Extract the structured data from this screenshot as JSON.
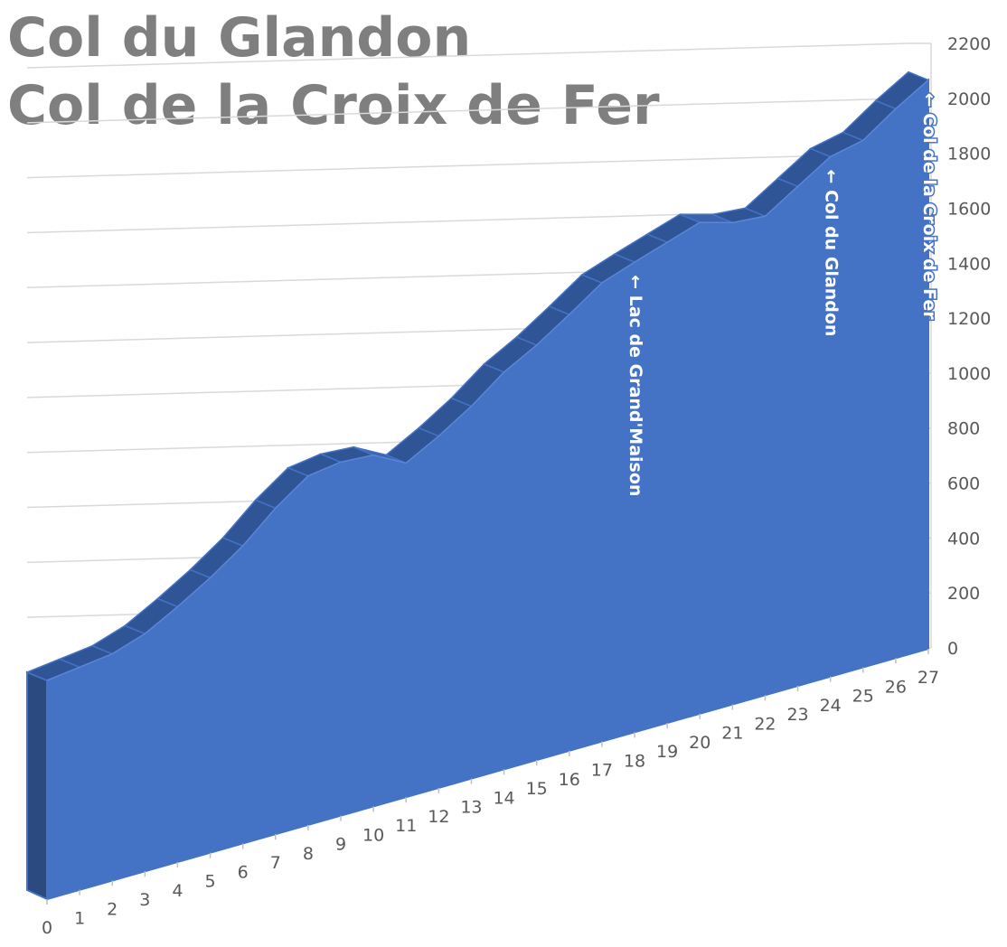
{
  "chart_data": {
    "type": "area3d",
    "title": [
      "Col du Glandon",
      "Col de la Croix de Fer"
    ],
    "categories": [
      "0",
      "1",
      "2",
      "3",
      "4",
      "5",
      "6",
      "7",
      "8",
      "9",
      "10",
      "11",
      "12",
      "13",
      "14",
      "15",
      "16",
      "17",
      "18",
      "19",
      "20",
      "21",
      "22",
      "23",
      "24",
      "25",
      "26",
      "27"
    ],
    "values": [
      0,
      45,
      90,
      160,
      255,
      357,
      470,
      604,
      718,
      765,
      787,
      755,
      850,
      955,
      1076,
      1171,
      1279,
      1391,
      1463,
      1532,
      1601,
      1597,
      1617,
      1722,
      1827,
      1883,
      1995,
      2096
    ],
    "color": "#4472c4",
    "ylim": [
      0,
      2200
    ],
    "yticks": [
      0,
      200,
      400,
      600,
      800,
      1000,
      1200,
      1400,
      1600,
      1800,
      2000,
      2200
    ],
    "grid": true,
    "annotations": [
      {
        "category": 18,
        "text": "← Lac de Grand'Maison"
      },
      {
        "category": 24,
        "text": "← Col du Glandon"
      },
      {
        "category": 27,
        "text": "← Col de la Croix de Fer"
      }
    ]
  }
}
